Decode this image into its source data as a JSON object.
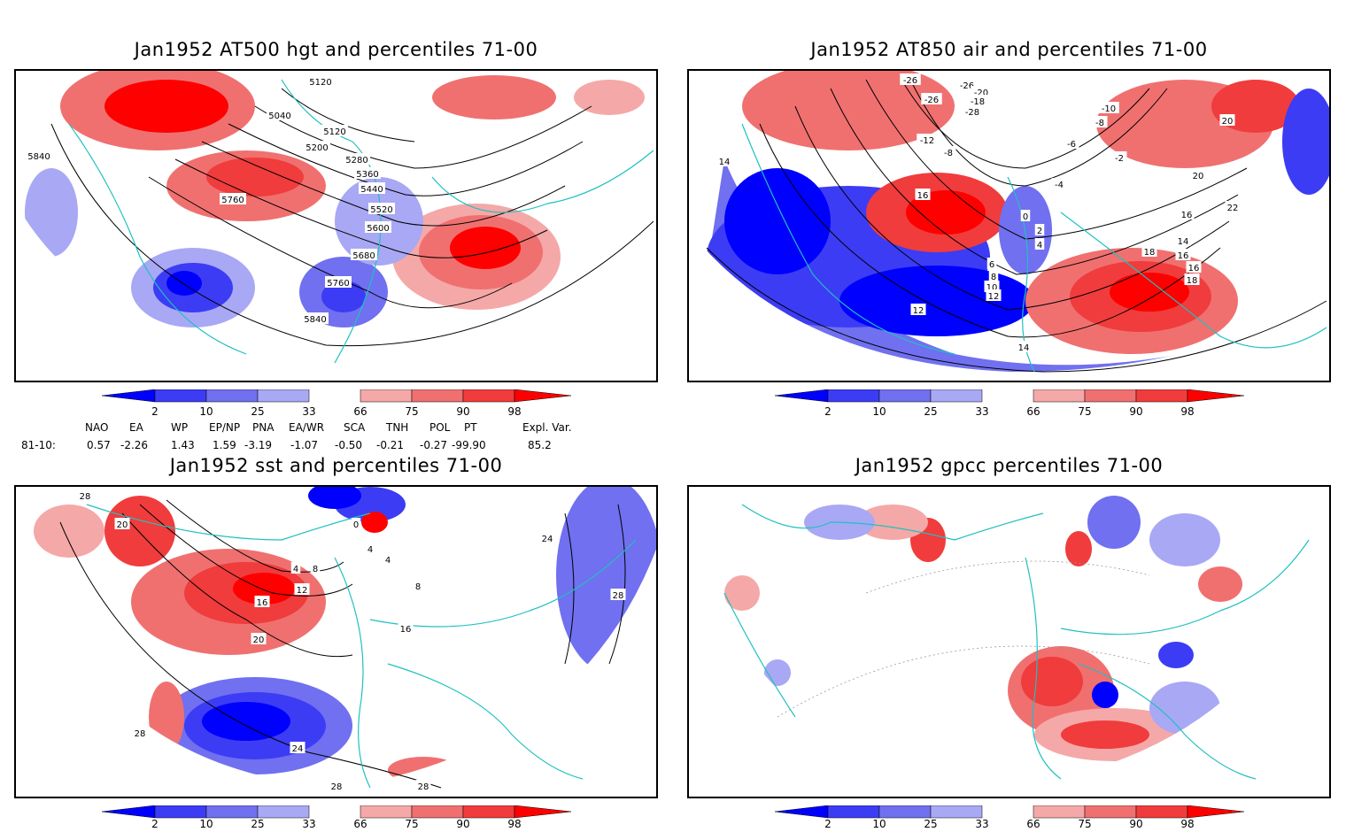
{
  "panels": [
    {
      "id": "p1",
      "title": "Jan1952 AT500 hgt and percentiles 71-00",
      "contour_labels": [
        "5120",
        "5040",
        "5120",
        "5200",
        "5280",
        "5360",
        "5440",
        "5520",
        "5600",
        "5680",
        "5760",
        "5840",
        "5760",
        "5840"
      ]
    },
    {
      "id": "p2",
      "title": "Jan1952 AT850 air and percentiles 71-00",
      "contour_labels": [
        "-26",
        "-26",
        "-26",
        "-20",
        "-18",
        "-28",
        "-10",
        "-8",
        "-12",
        "-8",
        "-6",
        "-2",
        "-4",
        "0",
        "2",
        "4",
        "6",
        "8",
        "10",
        "12",
        "14",
        "16",
        "18",
        "20",
        "22",
        "12",
        "14",
        "16",
        "16",
        "16",
        "18",
        "20",
        "14"
      ]
    },
    {
      "id": "p3",
      "title": "Jan1952 sst and percentiles 71-00",
      "contour_labels": [
        "28",
        "20",
        "0",
        "4",
        "8",
        "12",
        "16",
        "20",
        "24",
        "28",
        "28",
        "28",
        "24",
        "28",
        "16",
        "8",
        "4",
        "4"
      ]
    },
    {
      "id": "p4",
      "title": "Jan1952 gpcc percentiles 71-00",
      "contour_labels": []
    }
  ],
  "colorbar": {
    "labels": [
      "2",
      "10",
      "25",
      "33",
      "66",
      "75",
      "90",
      "98"
    ],
    "colors": {
      "blue_dark": "#0000ff",
      "blue_mid": "#3c3cf5",
      "blue_light": "#7070f0",
      "blue_pale": "#a8a8f5",
      "red_pale": "#f5a8a8",
      "red_light": "#f07070",
      "red_mid": "#f03c3c",
      "red_dark": "#ff0000"
    }
  },
  "indices": {
    "header": [
      "NAO",
      "EA",
      "WP",
      "EP/NP",
      "PNA",
      "EA/WR",
      "SCA",
      "TNH",
      "POL",
      "PT",
      "Expl. Var."
    ],
    "row_label": "81-10:",
    "values": [
      "0.57",
      "-2.26",
      "1.43",
      "1.59",
      "-3.19",
      "-1.07",
      "-0.50",
      "-0.21",
      "-0.27",
      "-99.90",
      "85.2"
    ]
  },
  "colors": {
    "coast": "#20c0c0",
    "contour": "#000000",
    "grid": "#999999"
  }
}
